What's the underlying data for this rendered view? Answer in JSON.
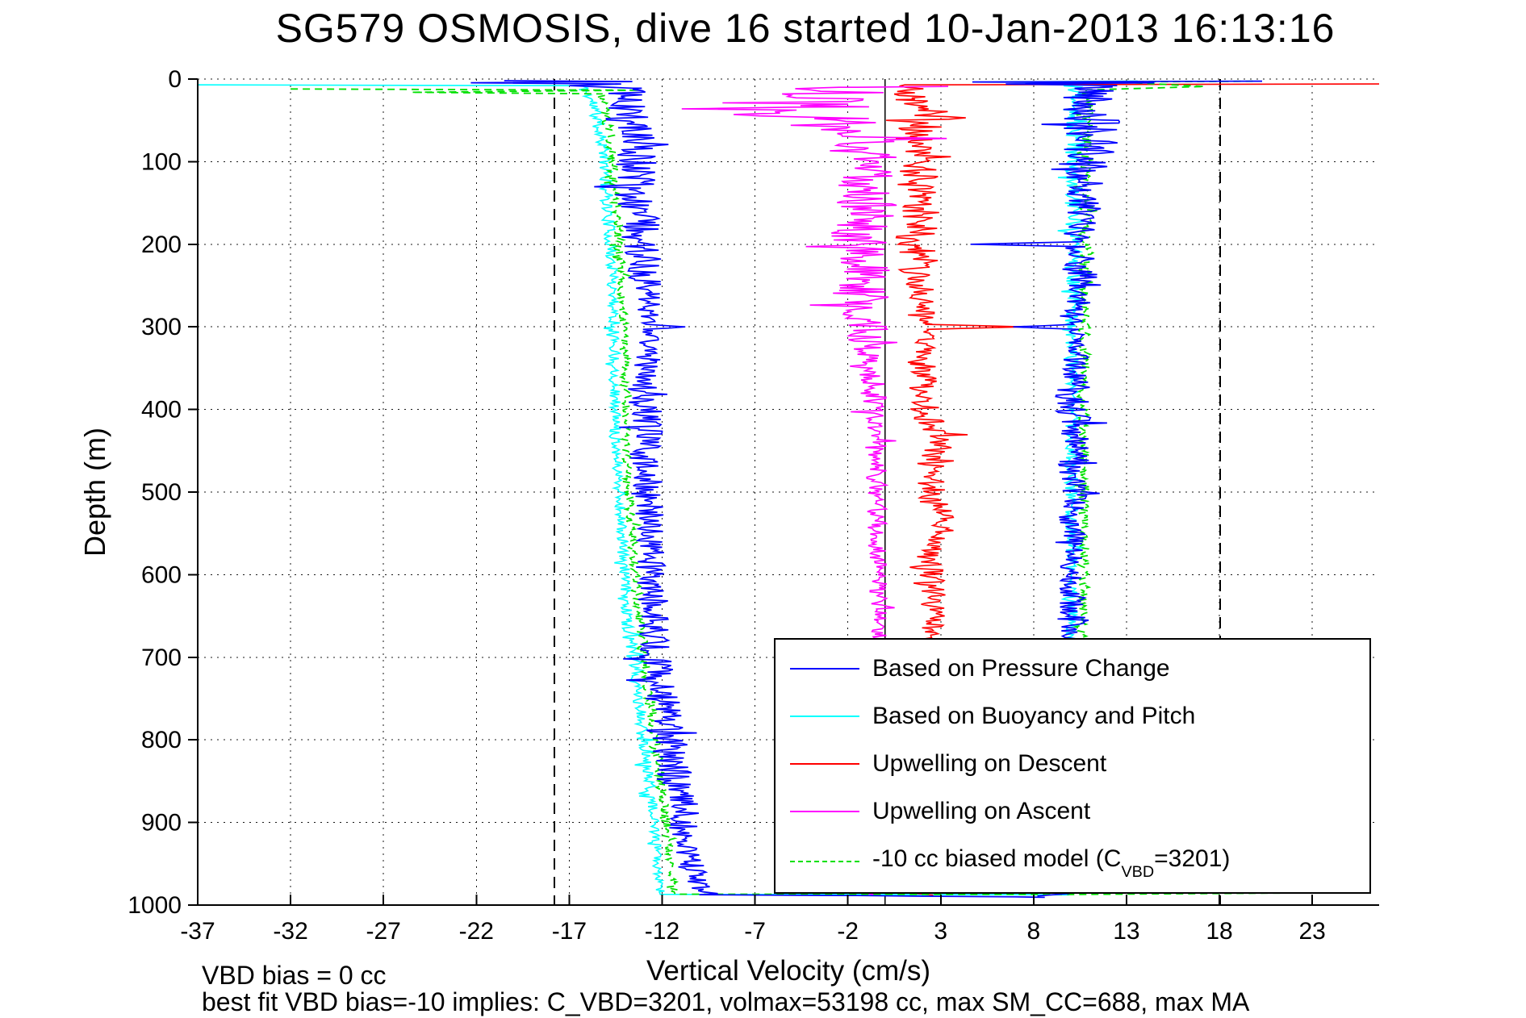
{
  "title": "SG579 OSMOSIS, dive 16 started 10-Jan-2013 16:13:16",
  "axis": {
    "xlabel": "Vertical Velocity (cm/s)",
    "ylabel": "Depth (m)"
  },
  "annotations": {
    "vbd_bias": "VBD bias = 0 cc",
    "best_fit": "best fit VBD bias=-10 implies: C_VBD=3201, volmax=53198 cc, max SM_CC=688, max MA"
  },
  "chart_data": {
    "type": "line",
    "title": "SG579 OSMOSIS, dive 16 started 10-Jan-2013 16:13:16",
    "xlabel": "Vertical Velocity (cm/s)",
    "ylabel": "Depth (m)",
    "xlim": [
      -37,
      26.6
    ],
    "ylim": [
      0,
      1000
    ],
    "y_axis_reversed": true,
    "grid": "dotted",
    "x_ticks": [
      -37,
      -32,
      -27,
      -22,
      -17,
      -12,
      -7,
      -2,
      3,
      8,
      13,
      18,
      23
    ],
    "y_ticks": [
      0,
      100,
      200,
      300,
      400,
      500,
      600,
      700,
      800,
      900,
      1000
    ],
    "reference_lines": {
      "zero_line_x": 0,
      "dashed_x": [
        -17.8,
        18.05
      ],
      "color": "#000000"
    },
    "colors": {
      "pressure": "#0000ff",
      "buoyancy_pitch": "#00ffff",
      "upwelling_descent": "#ff0000",
      "upwelling_ascent": "#ff00ff",
      "biased_model": "#00e000"
    },
    "legend": {
      "position": "lower-right",
      "entries": [
        {
          "color": "#0000ff",
          "dash": false,
          "parts": [
            [
              "t",
              "Based on Pressure Change"
            ]
          ]
        },
        {
          "color": "#00ffff",
          "dash": false,
          "parts": [
            [
              "t",
              "Based on Buoyancy and Pitch"
            ]
          ]
        },
        {
          "color": "#ff0000",
          "dash": false,
          "parts": [
            [
              "t",
              "Upwelling on Descent"
            ]
          ]
        },
        {
          "color": "#ff00ff",
          "dash": false,
          "parts": [
            [
              "t",
              "Upwelling on Ascent"
            ]
          ]
        },
        {
          "color": "#00e000",
          "dash": true,
          "parts": [
            [
              "t",
              "-10 cc biased model (C"
            ],
            [
              "sub",
              "VBD"
            ],
            [
              "t",
              "=3201)"
            ]
          ]
        }
      ]
    },
    "series_format": "bp = [depth_m, mean_velocity_cm_s, noise_amp]; pre/post = [velocity_cm_s, depth_m] polyline anchors",
    "series": [
      {
        "name": "buoyancy-pitch-descent",
        "color": "#00ffff",
        "dash": false,
        "width": 1.6,
        "seed": 11,
        "pre": [
          [
            -37,
            7
          ],
          [
            -16.9,
            8
          ]
        ],
        "bp": [
          [
            8,
            -16.3,
            0.3
          ],
          [
            30,
            -15.7,
            0.35
          ],
          [
            80,
            -15.15,
            0.3
          ],
          [
            150,
            -14.95,
            0.3
          ],
          [
            260,
            -14.6,
            0.28
          ],
          [
            420,
            -14.5,
            0.25
          ],
          [
            560,
            -14.15,
            0.25
          ],
          [
            660,
            -13.85,
            0.3
          ],
          [
            760,
            -13.25,
            0.3
          ],
          [
            860,
            -12.65,
            0.28
          ],
          [
            935,
            -12.3,
            0.22
          ],
          [
            984,
            -12.15,
            0.18
          ]
        ],
        "post": [
          [
            -12.1,
            987
          ],
          [
            9.9,
            987.6
          ]
        ]
      },
      {
        "name": "buoyancy-pitch-ascent",
        "color": "#00ffff",
        "dash": false,
        "width": 1.6,
        "seed": 12,
        "pre": [
          [
            13.6,
            2.5
          ],
          [
            6.2,
            3.5
          ],
          [
            10.2,
            4.5
          ]
        ],
        "bp": [
          [
            5,
            10.35,
            0.45
          ],
          [
            60,
            10.3,
            0.5
          ],
          [
            150,
            10.2,
            0.45
          ],
          [
            300,
            10.1,
            0.35
          ],
          [
            500,
            10.05,
            0.3
          ],
          [
            700,
            10.05,
            0.28
          ],
          [
            900,
            9.95,
            0.28
          ],
          [
            984,
            9.9,
            0.22
          ]
        ],
        "post": [
          [
            9.6,
            988
          ]
        ]
      },
      {
        "name": "upwelling-descent",
        "color": "#ff0000",
        "dash": false,
        "width": 1.6,
        "seed": 21,
        "pre": [
          [
            26.6,
            6
          ],
          [
            12.6,
            6.5
          ],
          [
            1.4,
            7
          ]
        ],
        "bp": [
          [
            7,
            1.2,
            0.9
          ],
          [
            25,
            1.5,
            1.0
          ],
          [
            44,
            2.6,
            1.1
          ],
          [
            47,
            4.4,
            0.1
          ],
          [
            50,
            2.2,
            1.0
          ],
          [
            70,
            1.6,
            1.0
          ],
          [
            110,
            1.7,
            1.0
          ],
          [
            160,
            1.9,
            1.1
          ],
          [
            210,
            1.7,
            1.0
          ],
          [
            260,
            2.0,
            0.8
          ],
          [
            297,
            2.3,
            0.3
          ],
          [
            300,
            7.5,
            0.05
          ],
          [
            303,
            2.3,
            0.3
          ],
          [
            345,
            2.0,
            0.75
          ],
          [
            405,
            2.1,
            0.75
          ],
          [
            435,
            3.0,
            0.7
          ],
          [
            475,
            2.4,
            0.7
          ],
          [
            510,
            2.7,
            0.75
          ],
          [
            545,
            3.1,
            0.65
          ],
          [
            575,
            2.3,
            0.6
          ],
          [
            615,
            2.5,
            0.65
          ],
          [
            650,
            2.7,
            0.55
          ],
          [
            670,
            2.4,
            0.5
          ],
          [
            760,
            2.1,
            0.45
          ],
          [
            880,
            1.9,
            0.4
          ],
          [
            982,
            2.0,
            0.3
          ]
        ],
        "post": [
          [
            1.7,
            986
          ],
          [
            2.6,
            988
          ]
        ]
      },
      {
        "name": "upwelling-ascent",
        "color": "#ff00ff",
        "dash": false,
        "width": 1.6,
        "seed": 22,
        "pre": [
          [
            3.4,
            9
          ],
          [
            -1.5,
            10
          ]
        ],
        "bp": [
          [
            10,
            -3.2,
            2.6
          ],
          [
            24,
            -3.0,
            2.8
          ],
          [
            34,
            -2.6,
            2.4
          ],
          [
            36,
            -10.9,
            0.05
          ],
          [
            38,
            -2.6,
            2.2
          ],
          [
            43,
            -8.1,
            0.1
          ],
          [
            48,
            -2.4,
            2.0
          ],
          [
            58,
            -1.8,
            1.7
          ],
          [
            70,
            -1.1,
            1.4
          ],
          [
            72,
            3.3,
            0.05
          ],
          [
            74,
            -1.1,
            1.4
          ],
          [
            95,
            -1.1,
            1.5
          ],
          [
            140,
            -0.9,
            1.4
          ],
          [
            190,
            -1.2,
            1.5
          ],
          [
            240,
            -1.5,
            1.6
          ],
          [
            290,
            -1.1,
            1.1
          ],
          [
            350,
            -0.7,
            0.65
          ],
          [
            450,
            -0.5,
            0.5
          ],
          [
            560,
            -0.4,
            0.45
          ],
          [
            680,
            -0.3,
            0.4
          ],
          [
            820,
            -0.3,
            0.35
          ],
          [
            982,
            -0.25,
            0.28
          ]
        ],
        "post": [
          [
            -1.0,
            986
          ],
          [
            -0.2,
            988.5
          ]
        ]
      },
      {
        "name": "biased-model-descent",
        "color": "#00e000",
        "dash": true,
        "width": 1.8,
        "seed": 31,
        "pre": [
          [
            -32,
            12
          ],
          [
            -13.2,
            13.5
          ],
          [
            -25.5,
            16
          ],
          [
            -15.2,
            18
          ]
        ],
        "bp": [
          [
            18,
            -15.35,
            0.25
          ],
          [
            60,
            -14.85,
            0.25
          ],
          [
            150,
            -14.45,
            0.25
          ],
          [
            300,
            -14.05,
            0.22
          ],
          [
            460,
            -13.9,
            0.2
          ],
          [
            600,
            -13.5,
            0.25
          ],
          [
            700,
            -13.0,
            0.28
          ],
          [
            800,
            -12.4,
            0.28
          ],
          [
            900,
            -11.8,
            0.22
          ],
          [
            984,
            -11.35,
            0.18
          ]
        ],
        "post": [
          [
            -11.3,
            986.8
          ],
          [
            10.4,
            987.1
          ],
          [
            22.5,
            985.4
          ]
        ]
      },
      {
        "name": "biased-model-ascent",
        "color": "#00e000",
        "dash": true,
        "width": 1.8,
        "seed": 32,
        "pre": [
          [
            19.8,
            2.6
          ],
          [
            12.4,
            3.4
          ],
          [
            17.2,
            9
          ],
          [
            11.2,
            13
          ]
        ],
        "bp": [
          [
            13,
            10.95,
            0.3
          ],
          [
            100,
            10.85,
            0.3
          ],
          [
            250,
            10.75,
            0.28
          ],
          [
            420,
            10.7,
            0.25
          ],
          [
            620,
            10.7,
            0.25
          ],
          [
            820,
            10.55,
            0.22
          ],
          [
            984,
            10.45,
            0.18
          ]
        ],
        "post": []
      },
      {
        "name": "pressure-descent",
        "color": "#0000ff",
        "dash": false,
        "width": 1.7,
        "seed": 41,
        "pre": [
          [
            -20.5,
            2
          ],
          [
            -13.6,
            3
          ],
          [
            -22.3,
            4.5
          ],
          [
            -14.2,
            6
          ],
          [
            -17,
            8
          ],
          [
            -13.6,
            11
          ]
        ],
        "bp": [
          [
            11,
            -13.9,
            1.0
          ],
          [
            60,
            -13.6,
            1.1
          ],
          [
            140,
            -13.4,
            1.0
          ],
          [
            210,
            -13.0,
            0.9
          ],
          [
            260,
            -12.8,
            0.7
          ],
          [
            297,
            -12.7,
            0.4
          ],
          [
            300,
            -10.7,
            0.05
          ],
          [
            303,
            -12.7,
            0.4
          ],
          [
            340,
            -13.0,
            0.8
          ],
          [
            430,
            -12.9,
            0.8
          ],
          [
            530,
            -12.7,
            0.7
          ],
          [
            630,
            -12.6,
            0.7
          ],
          [
            710,
            -12.3,
            0.8
          ],
          [
            790,
            -11.8,
            0.9
          ],
          [
            860,
            -11.2,
            0.9
          ],
          [
            925,
            -10.7,
            0.8
          ],
          [
            965,
            -10.3,
            0.6
          ],
          [
            984,
            -9.8,
            0.4
          ]
        ],
        "post": [
          [
            -9.0,
            986
          ],
          [
            -10,
            987.5
          ],
          [
            -1.5,
            988.5
          ],
          [
            3,
            989.5
          ],
          [
            7,
            990
          ],
          [
            8.6,
            990.6
          ]
        ]
      },
      {
        "name": "pressure-ascent",
        "color": "#0000ff",
        "dash": false,
        "width": 1.7,
        "seed": 42,
        "pre": [
          [
            20.3,
            2.5
          ],
          [
            4.7,
            3.5
          ],
          [
            14.5,
            4.5
          ],
          [
            6.5,
            6
          ],
          [
            12.5,
            8
          ]
        ],
        "bp": [
          [
            8,
            11.2,
            1.3
          ],
          [
            50,
            11.1,
            1.5
          ],
          [
            120,
            10.7,
            1.2
          ],
          [
            197,
            10.6,
            0.5
          ],
          [
            200,
            4.6,
            0.05
          ],
          [
            203,
            10.6,
            0.5
          ],
          [
            250,
            10.4,
            1.1
          ],
          [
            297,
            10.3,
            0.3
          ],
          [
            300,
            6.9,
            0.05
          ],
          [
            303,
            10.3,
            0.3
          ],
          [
            370,
            10.2,
            0.9
          ],
          [
            460,
            10.1,
            0.7
          ],
          [
            580,
            10.1,
            0.6
          ],
          [
            720,
            10.1,
            0.6
          ],
          [
            860,
            10.0,
            0.5
          ],
          [
            984,
            9.9,
            0.35
          ]
        ],
        "post": [
          [
            9.9,
            986
          ],
          [
            8.2,
            989
          ]
        ]
      }
    ]
  }
}
